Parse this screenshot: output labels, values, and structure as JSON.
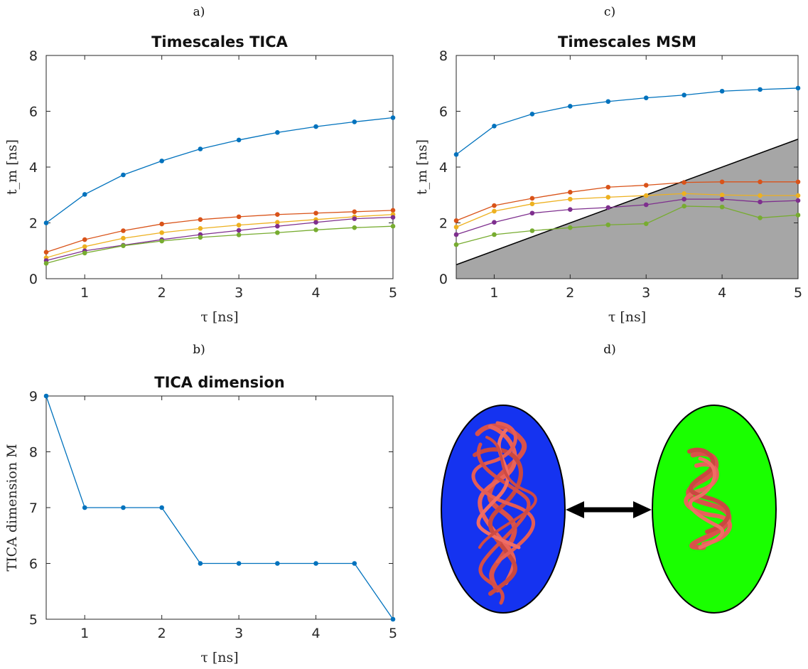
{
  "panel_labels": {
    "a": "a)",
    "b": "b)",
    "c": "c)",
    "d": "d)"
  },
  "chart_data": [
    {
      "id": "a",
      "type": "line",
      "title": "Timescales TICA",
      "xlabel": "τ [ns]",
      "ylabel": "t_m [ns]",
      "xlim": [
        0.5,
        5
      ],
      "ylim": [
        0,
        8
      ],
      "xticks": [
        1,
        2,
        3,
        4,
        5
      ],
      "yticks": [
        0,
        2,
        4,
        6,
        8
      ],
      "x": [
        0.5,
        1,
        1.5,
        2,
        2.5,
        3,
        3.5,
        4,
        4.5,
        5
      ],
      "series": [
        {
          "color": "#0072BD",
          "values": [
            2.0,
            3.02,
            3.72,
            4.22,
            4.65,
            4.97,
            5.24,
            5.45,
            5.62,
            5.77
          ]
        },
        {
          "color": "#D95319",
          "values": [
            0.95,
            1.4,
            1.72,
            1.96,
            2.12,
            2.22,
            2.3,
            2.35,
            2.4,
            2.45
          ]
        },
        {
          "color": "#EDB120",
          "values": [
            0.75,
            1.15,
            1.45,
            1.65,
            1.8,
            1.92,
            2.02,
            2.12,
            2.22,
            2.3
          ]
        },
        {
          "color": "#7E2F8E",
          "values": [
            0.65,
            1.0,
            1.2,
            1.4,
            1.58,
            1.73,
            1.88,
            2.02,
            2.15,
            2.2
          ]
        },
        {
          "color": "#77AC30",
          "values": [
            0.55,
            0.92,
            1.18,
            1.35,
            1.48,
            1.57,
            1.65,
            1.75,
            1.83,
            1.88
          ]
        }
      ],
      "grid": false
    },
    {
      "id": "c",
      "type": "line",
      "title": "Timescales MSM",
      "xlabel": "τ [ns]",
      "ylabel": "t_m [ns]",
      "xlim": [
        0.5,
        5
      ],
      "ylim": [
        0,
        8
      ],
      "xticks": [
        1,
        2,
        3,
        4,
        5
      ],
      "yticks": [
        0,
        2,
        4,
        6,
        8
      ],
      "x": [
        0.5,
        1,
        1.5,
        2,
        2.5,
        3,
        3.5,
        4,
        4.5,
        5
      ],
      "shaded_region": {
        "description": "t_m < τ",
        "color": "#a6a6a6",
        "boundary": [
          [
            0.5,
            0.5
          ],
          [
            5,
            5
          ]
        ]
      },
      "series": [
        {
          "color": "#0072BD",
          "values": [
            4.45,
            5.47,
            5.9,
            6.18,
            6.35,
            6.48,
            6.58,
            6.72,
            6.78,
            6.83
          ]
        },
        {
          "color": "#D95319",
          "values": [
            2.08,
            2.62,
            2.88,
            3.1,
            3.28,
            3.35,
            3.45,
            3.47,
            3.47,
            3.47
          ]
        },
        {
          "color": "#EDB120",
          "values": [
            1.85,
            2.42,
            2.68,
            2.85,
            2.92,
            2.98,
            3.05,
            3.0,
            2.98,
            2.98
          ]
        },
        {
          "color": "#7E2F8E",
          "values": [
            1.58,
            2.02,
            2.35,
            2.48,
            2.55,
            2.65,
            2.85,
            2.85,
            2.75,
            2.8
          ]
        },
        {
          "color": "#77AC30",
          "values": [
            1.22,
            1.58,
            1.72,
            1.83,
            1.93,
            1.97,
            2.6,
            2.57,
            2.18,
            2.28
          ]
        }
      ],
      "grid": false
    },
    {
      "id": "b",
      "type": "line",
      "title": "TICA dimension",
      "xlabel": "τ [ns]",
      "ylabel": "TICA dimension M",
      "xlim": [
        0.5,
        5
      ],
      "ylim": [
        5,
        9
      ],
      "xticks": [
        1,
        2,
        3,
        4,
        5
      ],
      "yticks": [
        5,
        6,
        7,
        8,
        9
      ],
      "x": [
        0.5,
        1,
        1.5,
        2,
        2.5,
        3,
        3.5,
        4,
        4.5,
        5
      ],
      "series": [
        {
          "color": "#0072BD",
          "values": [
            9,
            7,
            7,
            7,
            6,
            6,
            6,
            6,
            6,
            5
          ]
        }
      ],
      "grid": false
    }
  ],
  "illustration": {
    "left_state_color": "#1533f0",
    "right_state_color": "#1aff00",
    "arrow": "double-headed-arrow"
  }
}
